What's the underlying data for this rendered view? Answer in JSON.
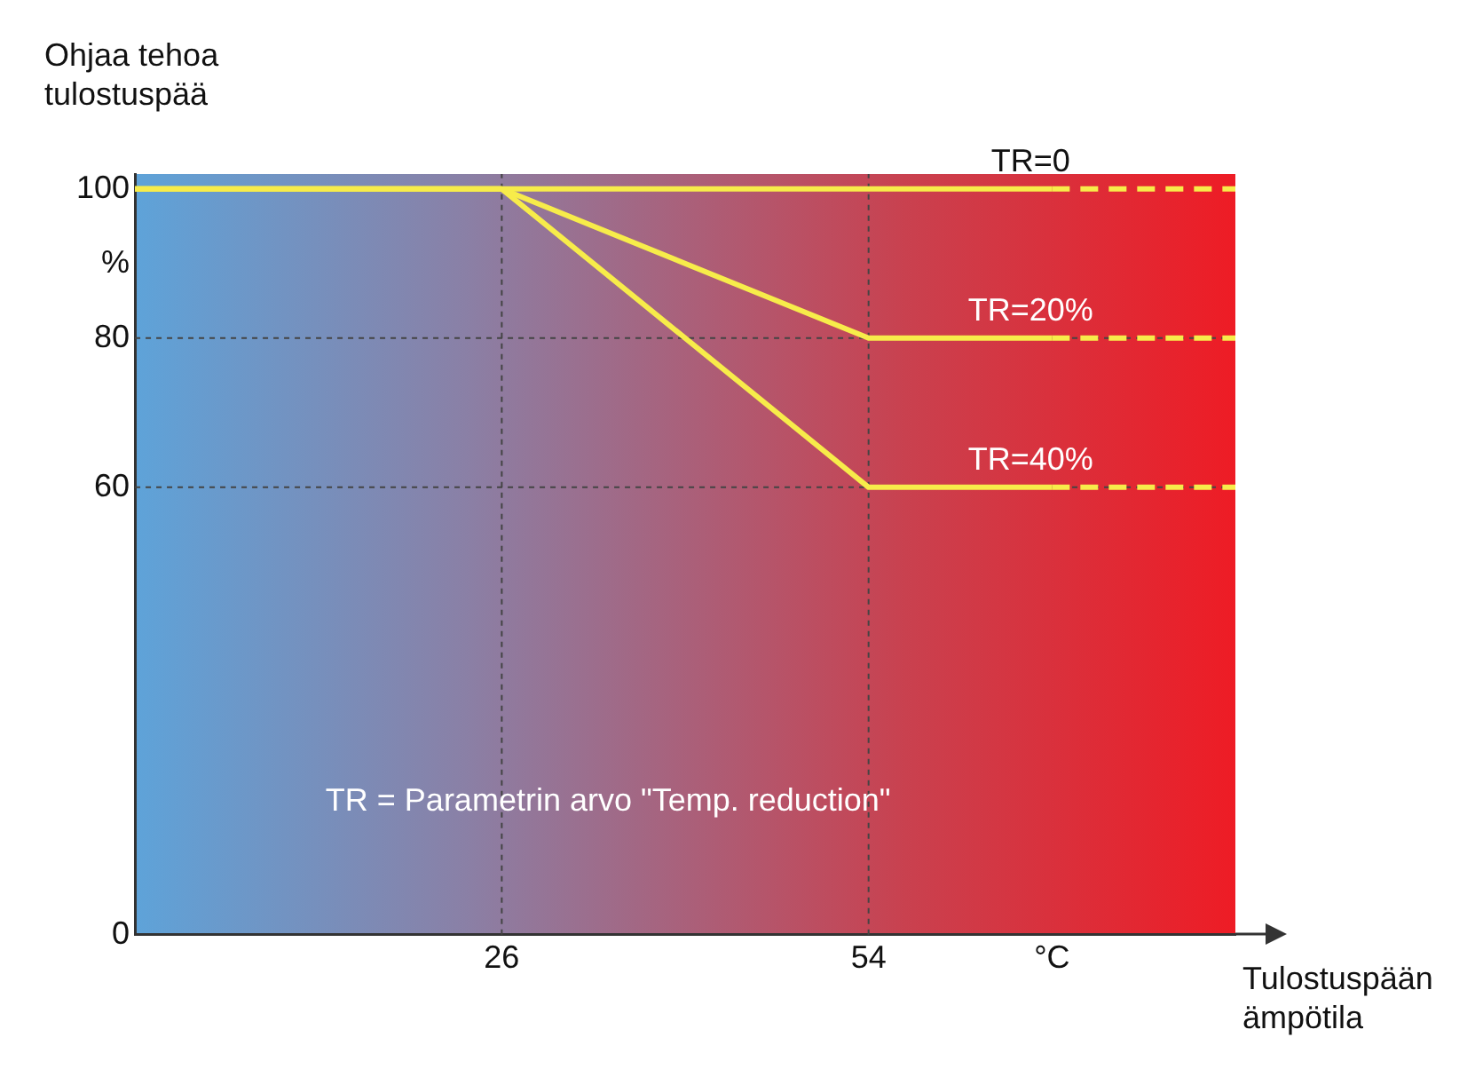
{
  "chart_data": {
    "type": "line",
    "xlabel": "Tulostuspään ämpötila",
    "ylabel": "Ohjaa tehoa tulostuspää",
    "xlim": [
      -2,
      82
    ],
    "xticks": [
      26,
      54,
      {
        "value": 68,
        "label": "°C"
      }
    ],
    "ylim": [
      0,
      102
    ],
    "yticks": [
      0,
      60,
      80,
      {
        "value": 90,
        "label": "%"
      },
      100
    ],
    "grid": false,
    "legend": false,
    "marker": "none",
    "series": [
      {
        "name": "TR=0",
        "color": "#f7ec4a",
        "x": [
          -2,
          26,
          54,
          68
        ],
        "values": [
          100,
          100,
          100,
          100
        ],
        "line_style": "solid"
      },
      {
        "name": "TR=20%",
        "color": "#f7ec4a",
        "x": [
          -2,
          26,
          54,
          68
        ],
        "values": [
          100,
          100,
          80,
          80
        ],
        "line_style": "solid"
      },
      {
        "name": "TR=40%",
        "color": "#f7ec4a",
        "x": [
          -2,
          26,
          54,
          68
        ],
        "values": [
          100,
          100,
          60,
          60
        ],
        "line_style": "solid"
      },
      {
        "color": "#f7ec4a",
        "x": [
          68,
          82
        ],
        "values": [
          100,
          100
        ],
        "line_style": "dashed"
      },
      {
        "color": "#f7ec4a",
        "x": [
          68,
          82
        ],
        "values": [
          80,
          80
        ],
        "line_style": "dashed"
      },
      {
        "color": "#f7ec4a",
        "x": [
          68,
          82
        ],
        "values": [
          60,
          60
        ],
        "line_style": "dashed"
      }
    ],
    "ref_lines": [
      {
        "axis": "x",
        "value": 26,
        "color": "#444444",
        "line_style": "dashed"
      },
      {
        "axis": "x",
        "value": 54,
        "color": "#444444",
        "line_style": "dashed"
      },
      {
        "axis": "y",
        "value": 80,
        "color": "#444444",
        "line_style": "dashed"
      },
      {
        "axis": "y",
        "value": 60,
        "color": "#444444",
        "line_style": "dashed"
      }
    ],
    "annotations": [
      "TR = Parametrin arvo \"Temp. reduction\""
    ]
  }
}
